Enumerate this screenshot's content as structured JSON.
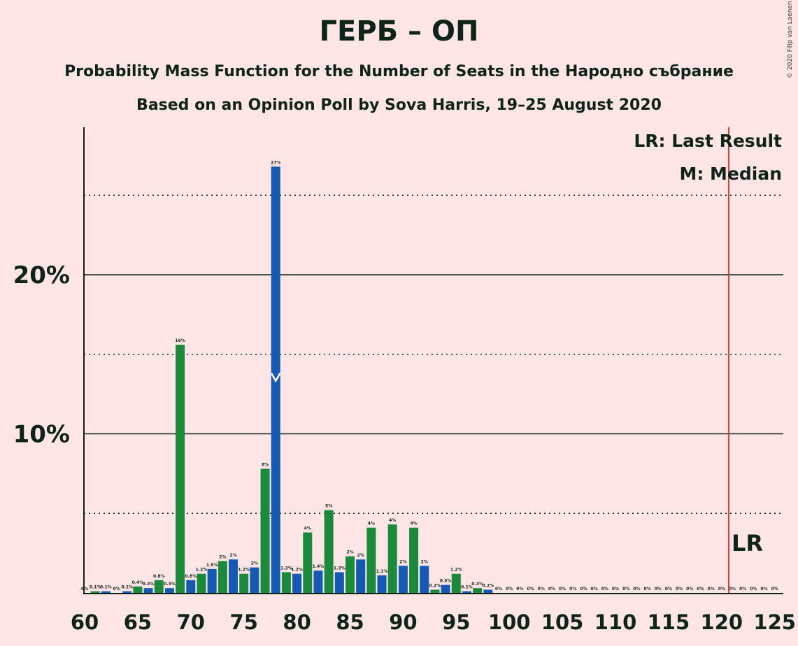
{
  "title": "ГЕРБ – ОП",
  "subtitle1": "Probability Mass Function for the Number of Seats in the Народно събрание",
  "subtitle2": "Based on an Opinion Poll by Sova Harris, 19–25 August 2020",
  "copyright": "© 2020 Filip van Laenen",
  "colors": {
    "background": "#FFE5E5",
    "green": "#1A8A3A",
    "blue": "#1459B3",
    "last_result_line": "#E0301E",
    "text": "#0F2419"
  },
  "chart_data": {
    "type": "bar",
    "x": [
      60,
      61,
      62,
      63,
      64,
      65,
      66,
      67,
      68,
      69,
      70,
      71,
      72,
      73,
      74,
      75,
      76,
      77,
      78,
      79,
      80,
      81,
      82,
      83,
      84,
      85,
      86,
      87,
      88,
      89,
      90,
      91,
      92,
      93,
      94,
      95,
      96,
      97,
      98,
      99,
      100,
      101,
      102,
      103,
      104,
      105,
      106,
      107,
      108,
      109,
      110,
      111,
      112,
      113,
      114,
      115,
      116,
      117,
      118,
      119,
      120,
      121,
      122,
      123,
      124,
      125
    ],
    "values": [
      0,
      0.1,
      0.1,
      0,
      0.1,
      0.4,
      0.3,
      0.8,
      0.3,
      15.6,
      0.8,
      1.2,
      1.5,
      2.0,
      2.1,
      1.2,
      1.6,
      7.8,
      26.8,
      1.3,
      1.2,
      3.8,
      1.4,
      5.2,
      1.3,
      2.3,
      2.1,
      4.1,
      1.1,
      4.3,
      1.7,
      4.1,
      1.7,
      0.2,
      0.5,
      1.2,
      0.1,
      0.3,
      0.2,
      0,
      0,
      0,
      0,
      0,
      0,
      0,
      0,
      0,
      0,
      0,
      0,
      0,
      0,
      0,
      0,
      0,
      0,
      0,
      0,
      0,
      0,
      0,
      0,
      0,
      0,
      0
    ],
    "value_labels": [
      "0%",
      "0.1%",
      "0.1%",
      "0%",
      "0.1%",
      "0.4%",
      "0.3%",
      "0.8%",
      "0.3%",
      "16%",
      "0.8%",
      "1.2%",
      "1.5%",
      "2%",
      "2%",
      "1.2%",
      "2%",
      "8%",
      "27%",
      "1.3%",
      "1.2%",
      "4%",
      "1.4%",
      "5%",
      "1.3%",
      "2%",
      "2%",
      "4%",
      "1.1%",
      "4%",
      "2%",
      "4%",
      "2%",
      "0.2%",
      "0.5%",
      "1.2%",
      "0.1%",
      "0.3%",
      "0.2%",
      "0%",
      "0%",
      "0%",
      "0%",
      "0%",
      "0%",
      "0%",
      "0%",
      "0%",
      "0%",
      "0%",
      "0%",
      "0%",
      "0%",
      "0%",
      "0%",
      "0%",
      "0%",
      "0%",
      "0%",
      "0%",
      "0%",
      "0%",
      "0%",
      "0%",
      "0%",
      "0%"
    ],
    "x_ticks": [
      "60",
      "65",
      "70",
      "75",
      "80",
      "85",
      "90",
      "95",
      "100",
      "105",
      "110",
      "115",
      "120",
      "125"
    ],
    "y_ticks": [
      {
        "value": 10,
        "label": "10%"
      },
      {
        "value": 20,
        "label": "20%"
      }
    ],
    "ylim": [
      0,
      29
    ],
    "median": 78,
    "last_result": 121,
    "median_marker": "M",
    "last_result_label": "LR",
    "legend": [
      "LR: Last Result",
      "M: Median"
    ]
  }
}
